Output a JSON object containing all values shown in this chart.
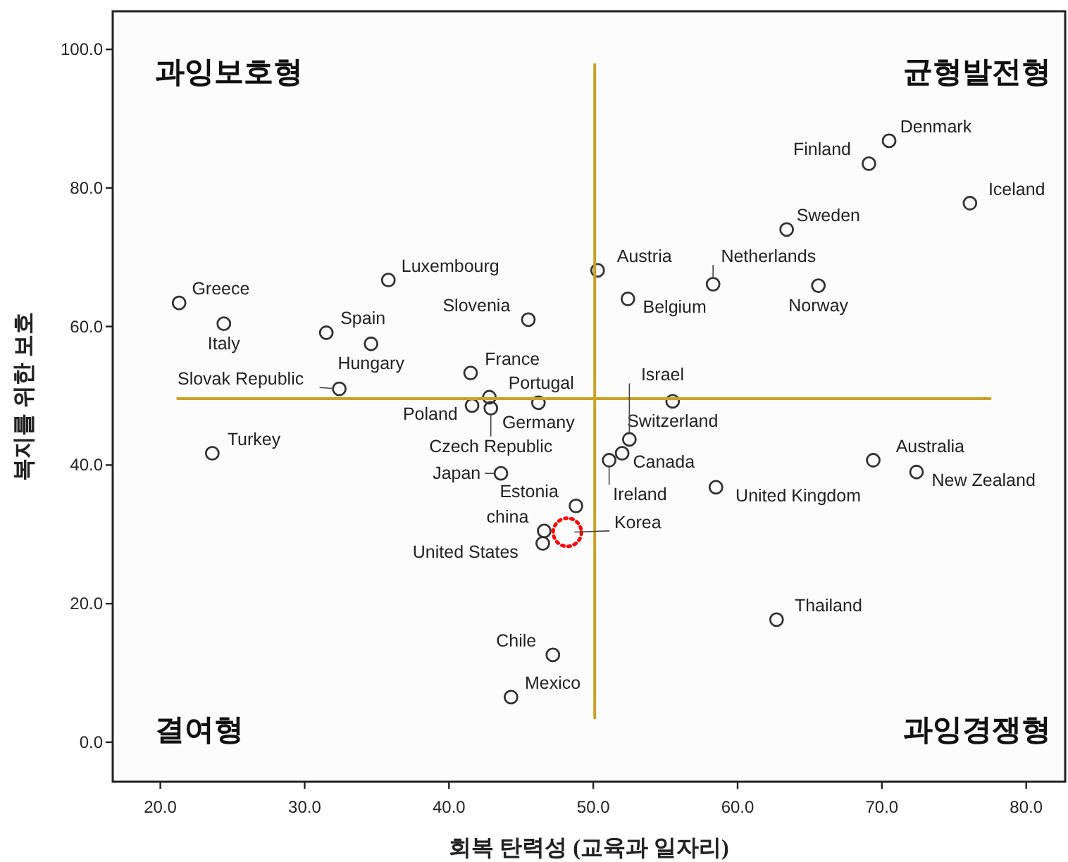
{
  "chart_data": {
    "type": "scatter",
    "xlabel": "회복 탄력성 (교육과 일자리)",
    "ylabel": "복지를 위한 보호",
    "xlim": [
      16.7,
      82.7
    ],
    "ylim": [
      -5.7,
      105.5
    ],
    "xticks": [
      {
        "value": 20,
        "label": "20.0"
      },
      {
        "value": 30,
        "label": "30.0"
      },
      {
        "value": 40,
        "label": "40.0"
      },
      {
        "value": 50,
        "label": "50.0"
      },
      {
        "value": 60,
        "label": "60.0"
      },
      {
        "value": 70,
        "label": "70.0"
      },
      {
        "value": 80,
        "label": "80.0"
      }
    ],
    "yticks": [
      {
        "value": 0,
        "label": "0.0"
      },
      {
        "value": 20,
        "label": "20.0"
      },
      {
        "value": 40,
        "label": "40.0"
      },
      {
        "value": 60,
        "label": "60.0"
      },
      {
        "value": 80,
        "label": "80.0"
      },
      {
        "value": 100,
        "label": "100.0"
      }
    ],
    "grid": false,
    "series": [
      {
        "color": "#333333",
        "marker": "circle",
        "x": [
          21.3,
          24.4,
          31.5,
          34.6,
          35.8,
          32.4,
          41.5,
          41.6,
          42.8,
          42.9,
          46.2,
          45.5,
          50.3,
          52.4,
          58.3,
          63.4,
          65.6,
          69.1,
          70.5,
          76.1,
          55.5,
          52.0,
          52.5,
          51.1,
          58.5,
          69.4,
          72.4,
          48.8,
          43.6,
          23.6,
          46.6,
          46.5,
          47.2,
          44.3,
          62.7
        ],
        "values": [
          63.4,
          60.4,
          59.1,
          57.5,
          66.7,
          51.0,
          53.3,
          48.6,
          49.8,
          48.2,
          49.0,
          61.0,
          68.1,
          64.0,
          66.1,
          74.0,
          65.9,
          83.5,
          86.8,
          77.8,
          49.2,
          41.7,
          43.7,
          40.7,
          36.8,
          40.7,
          39.0,
          34.1,
          38.8,
          41.7,
          30.5,
          28.7,
          12.6,
          6.5,
          17.7
        ]
      },
      {
        "type": "scatter",
        "color": "#ff0000",
        "marker": "circle",
        "line_style": "dotted",
        "x": [
          48.2
        ],
        "values": [
          30.3
        ]
      },
      {
        "type": "line",
        "color": "#c9a227",
        "x": [
          21.2,
          77.5
        ],
        "values": [
          49.6,
          49.6
        ]
      },
      {
        "type": "line",
        "color": "#c9a227",
        "x": [
          50.1,
          50.1
        ],
        "values": [
          3.5,
          97.8
        ]
      }
    ],
    "annotations": [
      {
        "text": "Greece",
        "x": 21.3,
        "y": 63.4
      },
      {
        "text": "Italy",
        "x": 24.4,
        "y": 60.4
      },
      {
        "text": "Spain",
        "x": 31.5,
        "y": 59.1
      },
      {
        "text": "Hungary",
        "x": 34.6,
        "y": 57.5
      },
      {
        "text": "Luxembourg",
        "x": 35.8,
        "y": 66.7
      },
      {
        "text": "Slovak Republic",
        "x": 32.4,
        "y": 51.0
      },
      {
        "text": "France",
        "x": 41.5,
        "y": 53.3
      },
      {
        "text": "Poland",
        "x": 41.6,
        "y": 48.6
      },
      {
        "text": "Portugal",
        "x": 42.8,
        "y": 49.8
      },
      {
        "text": "Czech Republic",
        "x": 42.9,
        "y": 48.2
      },
      {
        "text": "Germany",
        "x": 46.2,
        "y": 49.0
      },
      {
        "text": "Slovenia",
        "x": 45.5,
        "y": 61.0
      },
      {
        "text": "Austria",
        "x": 50.3,
        "y": 68.1
      },
      {
        "text": "Belgium",
        "x": 52.4,
        "y": 64.0
      },
      {
        "text": "Netherlands",
        "x": 58.3,
        "y": 66.1
      },
      {
        "text": "Sweden",
        "x": 63.4,
        "y": 74.0
      },
      {
        "text": "Norway",
        "x": 65.6,
        "y": 65.9
      },
      {
        "text": "Finland",
        "x": 69.1,
        "y": 83.5
      },
      {
        "text": "Denmark",
        "x": 70.5,
        "y": 86.8
      },
      {
        "text": "Iceland",
        "x": 76.1,
        "y": 77.8
      },
      {
        "text": "Switzerland",
        "x": 55.5,
        "y": 49.2
      },
      {
        "text": "Canada",
        "x": 52.0,
        "y": 41.7
      },
      {
        "text": "Israel",
        "x": 52.5,
        "y": 43.7
      },
      {
        "text": "Ireland",
        "x": 51.1,
        "y": 40.7
      },
      {
        "text": "United Kingdom",
        "x": 58.5,
        "y": 36.8
      },
      {
        "text": "Australia",
        "x": 69.4,
        "y": 40.7
      },
      {
        "text": "New Zealand",
        "x": 72.4,
        "y": 39.0
      },
      {
        "text": "Estonia",
        "x": 48.8,
        "y": 34.1
      },
      {
        "text": "Japan",
        "x": 43.6,
        "y": 38.8
      },
      {
        "text": "Turkey",
        "x": 23.6,
        "y": 41.7
      },
      {
        "text": "china",
        "x": 46.6,
        "y": 30.5
      },
      {
        "text": "United States",
        "x": 46.5,
        "y": 28.7
      },
      {
        "text": "Korea",
        "x": 48.2,
        "y": 30.3
      },
      {
        "text": "Chile",
        "x": 47.2,
        "y": 12.6
      },
      {
        "text": "Mexico",
        "x": 44.3,
        "y": 6.5
      },
      {
        "text": "Thailand",
        "x": 62.7,
        "y": 17.7
      },
      "과잉보호형",
      "균형발전형",
      "결여형",
      "과잉경쟁형"
    ]
  }
}
